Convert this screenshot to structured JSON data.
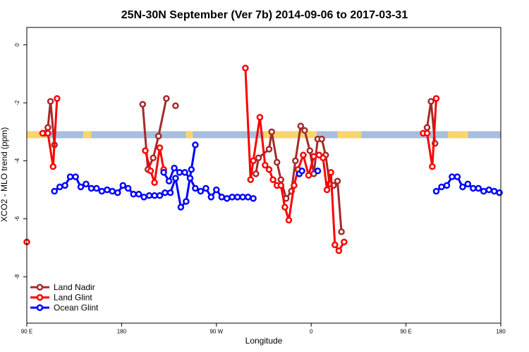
{
  "chart_data": {
    "type": "line",
    "title": "25N-30N September (Ver 7b)   2014-09-06 to 2017-03-31",
    "xlabel": "Longitude",
    "ylabel": "XCO2 - MLO trend (ppm)",
    "xlim": [
      -180,
      180
    ],
    "ylim": [
      -9.6,
      0.6
    ],
    "x_ticks": [
      {
        "value": -180,
        "label": "90 E"
      },
      {
        "value": -108,
        "label": "180"
      },
      {
        "value": -36,
        "label": "90 W"
      },
      {
        "value": 36,
        "label": "0"
      },
      {
        "value": 108,
        "label": "90 E"
      },
      {
        "value": 180,
        "label": "180"
      }
    ],
    "y_ticks": [
      {
        "value": 0,
        "label": "0"
      },
      {
        "value": -2,
        "label": "-2"
      },
      {
        "value": -4,
        "label": "-4"
      },
      {
        "value": -6,
        "label": "-6"
      },
      {
        "value": -8,
        "label": "-8"
      }
    ],
    "grid": false,
    "legend_position": "bottom-left",
    "band": {
      "y": -3.1,
      "yellow_color": "#f8d66a",
      "blue_color": "#a8bedc",
      "segments": [
        {
          "x0": -180,
          "x1": -164,
          "color": "yellow"
        },
        {
          "x0": -164,
          "x1": -137,
          "color": "blue"
        },
        {
          "x0": -137,
          "x1": -131,
          "color": "yellow"
        },
        {
          "x0": -131,
          "x1": -59,
          "color": "blue"
        },
        {
          "x0": -59,
          "x1": -54,
          "color": "yellow"
        },
        {
          "x0": -54,
          "x1": 0,
          "color": "blue"
        },
        {
          "x0": 0,
          "x1": 40,
          "color": "yellow"
        },
        {
          "x0": 40,
          "x1": 56,
          "color": "blue"
        },
        {
          "x0": 56,
          "x1": 74,
          "color": "yellow"
        },
        {
          "x0": 74,
          "x1": 140,
          "color": "blue"
        },
        {
          "x0": 140,
          "x1": 155,
          "color": "yellow"
        },
        {
          "x0": 155,
          "x1": 180,
          "color": "blue"
        }
      ]
    },
    "series": [
      {
        "name": "Land Nadir",
        "color": "#a52a2a",
        "segments": [
          [
            [
              -166,
              -3.05
            ],
            [
              -164,
              -2.85
            ],
            [
              -162,
              -1.95
            ],
            [
              -159,
              -3.45
            ]
          ],
          [
            [
              -92,
              -2.05
            ],
            [
              -88,
              -4.3
            ],
            [
              -84,
              -3.9
            ],
            [
              -80,
              -3.15
            ],
            [
              -74,
              -1.85
            ]
          ],
          [
            [
              -67,
              -2.1
            ]
          ],
          [
            [
              -6,
              -4.45
            ],
            [
              -4,
              -3.9
            ],
            [
              4,
              -3.6
            ],
            [
              6,
              -3.0
            ],
            [
              10,
              -4.05
            ],
            [
              13,
              -4.65
            ],
            [
              17,
              -5.3
            ],
            [
              21,
              -5.05
            ],
            [
              24,
              -4.0
            ],
            [
              28,
              -2.8
            ],
            [
              31,
              -2.95
            ],
            [
              35,
              -3.65
            ],
            [
              38,
              -4.45
            ],
            [
              41,
              -3.25
            ],
            [
              44,
              -3.25
            ],
            [
              47,
              -3.8
            ],
            [
              50,
              -4.8
            ],
            [
              53,
              -4.85
            ],
            [
              56,
              -4.7
            ],
            [
              59,
              -6.45
            ]
          ],
          [
            [
              124,
              -2.85
            ],
            [
              127,
              -1.95
            ],
            [
              130,
              -3.4
            ]
          ]
        ]
      },
      {
        "name": "Land Glint",
        "color": "#ff0000",
        "segments": [
          [
            [
              -180,
              -6.8
            ]
          ],
          [
            [
              -168,
              -3.05
            ],
            [
              -164,
              -3.05
            ],
            [
              -160,
              -4.2
            ],
            [
              -157,
              -1.85
            ]
          ],
          [
            [
              -90,
              -3.65
            ],
            [
              -86,
              -4.35
            ],
            [
              -83,
              -4.75
            ],
            [
              -79,
              -3.55
            ],
            [
              -76,
              -4.3
            ]
          ],
          [
            [
              -14,
              -0.8
            ],
            [
              -10,
              -4.65
            ],
            [
              -8,
              -4.0
            ],
            [
              -3,
              -2.5
            ],
            [
              1,
              -4.15
            ],
            [
              4,
              -4.3
            ],
            [
              7,
              -4.65
            ],
            [
              10,
              -4.85
            ],
            [
              13,
              -4.85
            ],
            [
              16,
              -5.6
            ],
            [
              19,
              -6.05
            ],
            [
              23,
              -4.85
            ],
            [
              26,
              -4.3
            ],
            [
              30,
              -3.8
            ],
            [
              34,
              -4.5
            ],
            [
              38,
              -3.85
            ],
            [
              42,
              -3.8
            ],
            [
              45,
              -3.9
            ],
            [
              48,
              -5.0
            ],
            [
              51,
              -4.4
            ],
            [
              54,
              -6.9
            ],
            [
              57,
              -7.1
            ],
            [
              61,
              -6.8
            ]
          ],
          [
            [
              121,
              -3.05
            ],
            [
              124,
              -3.05
            ],
            [
              128,
              -4.2
            ],
            [
              131,
              -1.85
            ]
          ]
        ]
      },
      {
        "name": "Ocean Glint",
        "color": "#0000ff",
        "segments": [
          [
            [
              -159,
              -5.05
            ],
            [
              -155,
              -4.9
            ],
            [
              -151,
              -4.85
            ],
            [
              -147,
              -4.55
            ],
            [
              -143,
              -4.55
            ],
            [
              -139,
              -4.9
            ],
            [
              -135,
              -4.8
            ],
            [
              -131,
              -4.95
            ],
            [
              -127,
              -4.95
            ],
            [
              -123,
              -5.05
            ],
            [
              -119,
              -5.0
            ],
            [
              -115,
              -5.05
            ],
            [
              -111,
              -5.1
            ],
            [
              -107,
              -4.85
            ],
            [
              -103,
              -4.95
            ],
            [
              -99,
              -5.15
            ],
            [
              -95,
              -5.15
            ],
            [
              -91,
              -5.25
            ],
            [
              -87,
              -5.2
            ],
            [
              -83,
              -5.2
            ],
            [
              -79,
              -5.2
            ],
            [
              -75,
              -5.1
            ],
            [
              -71,
              -5.1
            ],
            [
              -67,
              -4.6
            ],
            [
              -63,
              -5.6
            ],
            [
              -59,
              -5.4
            ],
            [
              -55,
              -4.3
            ],
            [
              -52,
              -3.45
            ]
          ],
          [
            [
              -76,
              -4.4
            ],
            [
              -72,
              -4.7
            ],
            [
              -68,
              -4.25
            ],
            [
              -64,
              -4.4
            ],
            [
              -60,
              -4.4
            ],
            [
              -56,
              -4.6
            ],
            [
              -52,
              -4.95
            ],
            [
              -48,
              -5.05
            ],
            [
              -44,
              -4.95
            ],
            [
              -40,
              -5.25
            ],
            [
              -36,
              -5.0
            ],
            [
              -32,
              -5.25
            ],
            [
              -28,
              -5.3
            ],
            [
              -24,
              -5.25
            ],
            [
              -20,
              -5.25
            ],
            [
              -16,
              -5.25
            ],
            [
              -12,
              -5.25
            ],
            [
              -8,
              -5.3
            ]
          ],
          [
            [
              27,
              -4.45
            ],
            [
              29,
              -4.35
            ]
          ],
          [
            [
              41,
              -4.35
            ]
          ],
          [
            [
              131,
              -5.05
            ],
            [
              135,
              -4.9
            ],
            [
              139,
              -4.85
            ],
            [
              143,
              -4.55
            ],
            [
              147,
              -4.55
            ],
            [
              151,
              -4.9
            ],
            [
              155,
              -4.8
            ],
            [
              159,
              -4.95
            ],
            [
              163,
              -4.95
            ],
            [
              167,
              -5.05
            ],
            [
              171,
              -5.0
            ],
            [
              175,
              -5.05
            ],
            [
              179,
              -5.1
            ]
          ]
        ]
      }
    ]
  }
}
